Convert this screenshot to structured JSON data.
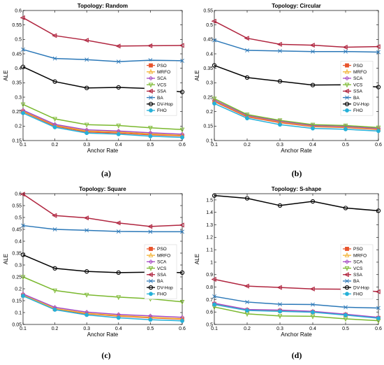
{
  "chart_data": [
    {
      "panel": "(a)",
      "type": "line",
      "title": "Topology: Random",
      "xlabel": "Anchor Rate",
      "ylabel": "ALE",
      "xlim": [
        0.1,
        0.6
      ],
      "ylim": [
        0.15,
        0.6
      ],
      "xticks": [
        "0.1",
        "0.2",
        "0.3",
        "0.4",
        "0.5",
        "0.6"
      ],
      "yticks": [
        "0.15",
        "0.2",
        "0.25",
        "0.3",
        "0.35",
        "0.4",
        "0.45",
        "0.5",
        "0.55",
        "0.6"
      ],
      "legend_position": "right-middle",
      "x": [
        0.1,
        0.2,
        0.3,
        0.4,
        0.5,
        0.6
      ],
      "series": [
        {
          "name": "PSO",
          "values": [
            0.25,
            0.2,
            0.18,
            0.176,
            0.17,
            0.166
          ]
        },
        {
          "name": "MRFO",
          "values": [
            0.252,
            0.203,
            0.183,
            0.18,
            0.173,
            0.168
          ]
        },
        {
          "name": "SCA",
          "values": [
            0.255,
            0.206,
            0.187,
            0.183,
            0.177,
            0.172
          ]
        },
        {
          "name": "VCS",
          "values": [
            0.275,
            0.225,
            0.205,
            0.202,
            0.194,
            0.188
          ]
        },
        {
          "name": "SSA",
          "values": [
            0.575,
            0.513,
            0.497,
            0.477,
            0.478,
            0.479
          ]
        },
        {
          "name": "BA",
          "values": [
            0.465,
            0.434,
            0.43,
            0.423,
            0.428,
            0.426
          ]
        },
        {
          "name": "DV-Hop",
          "values": [
            0.405,
            0.354,
            0.332,
            0.334,
            0.33,
            0.318
          ]
        },
        {
          "name": "FHO",
          "values": [
            0.245,
            0.196,
            0.176,
            0.172,
            0.165,
            0.161
          ]
        }
      ]
    },
    {
      "panel": "(b)",
      "type": "line",
      "title": "Topology: Circular",
      "xlabel": "Anchor Rate",
      "ylabel": "ALE",
      "xlim": [
        0.1,
        0.6
      ],
      "ylim": [
        0.1,
        0.55
      ],
      "xticks": [
        "0.1",
        "0.2",
        "0.3",
        "0.4",
        "0.5",
        "0.6"
      ],
      "yticks": [
        "0.1",
        "0.15",
        "0.2",
        "0.25",
        "0.3",
        "0.35",
        "0.4",
        "0.45",
        "0.5",
        "0.55"
      ],
      "legend_position": "right-middle",
      "x": [
        0.1,
        0.2,
        0.3,
        0.4,
        0.5,
        0.6
      ],
      "series": [
        {
          "name": "PSO",
          "values": [
            0.235,
            0.182,
            0.162,
            0.148,
            0.145,
            0.138
          ]
        },
        {
          "name": "MRFO",
          "values": [
            0.238,
            0.185,
            0.165,
            0.15,
            0.147,
            0.14
          ]
        },
        {
          "name": "SCA",
          "values": [
            0.24,
            0.187,
            0.167,
            0.152,
            0.149,
            0.142
          ]
        },
        {
          "name": "VCS",
          "values": [
            0.245,
            0.19,
            0.17,
            0.155,
            0.152,
            0.145
          ]
        },
        {
          "name": "SSA",
          "values": [
            0.513,
            0.454,
            0.433,
            0.43,
            0.423,
            0.425
          ]
        },
        {
          "name": "BA",
          "values": [
            0.447,
            0.412,
            0.41,
            0.408,
            0.408,
            0.406
          ]
        },
        {
          "name": "DV-Hop",
          "values": [
            0.36,
            0.318,
            0.305,
            0.292,
            0.293,
            0.285
          ]
        },
        {
          "name": "FHO",
          "values": [
            0.228,
            0.177,
            0.155,
            0.142,
            0.139,
            0.133
          ]
        }
      ]
    },
    {
      "panel": "(c)",
      "type": "line",
      "title": "Topology: Square",
      "xlabel": "Anchor Rate",
      "ylabel": "ALE",
      "xlim": [
        0.1,
        0.6
      ],
      "ylim": [
        0.05,
        0.6
      ],
      "xticks": [
        "0.1",
        "0.2",
        "0.3",
        "0.4",
        "0.5",
        "0.6"
      ],
      "yticks": [
        "0.05",
        "0.1",
        "0.15",
        "0.2",
        "0.25",
        "0.3",
        "0.35",
        "0.4",
        "0.45",
        "0.5",
        "0.55",
        "0.6"
      ],
      "legend_position": "right-middle",
      "x": [
        0.1,
        0.2,
        0.3,
        0.4,
        0.5,
        0.6
      ],
      "series": [
        {
          "name": "PSO",
          "values": [
            0.172,
            0.115,
            0.095,
            0.085,
            0.078,
            0.072
          ]
        },
        {
          "name": "MRFO",
          "values": [
            0.174,
            0.117,
            0.097,
            0.087,
            0.08,
            0.074
          ]
        },
        {
          "name": "SCA",
          "values": [
            0.178,
            0.122,
            0.102,
            0.092,
            0.086,
            0.08
          ]
        },
        {
          "name": "VCS",
          "values": [
            0.25,
            0.193,
            0.175,
            0.165,
            0.158,
            0.145
          ]
        },
        {
          "name": "SSA",
          "values": [
            0.598,
            0.508,
            0.498,
            0.477,
            0.462,
            0.468
          ]
        },
        {
          "name": "BA",
          "values": [
            0.466,
            0.45,
            0.446,
            0.441,
            0.44,
            0.44
          ]
        },
        {
          "name": "DV-Hop",
          "values": [
            0.343,
            0.286,
            0.273,
            0.268,
            0.27,
            0.268
          ]
        },
        {
          "name": "FHO",
          "values": [
            0.17,
            0.112,
            0.09,
            0.078,
            0.07,
            0.065
          ]
        }
      ]
    },
    {
      "panel": "(d)",
      "type": "line",
      "title": "Topology: S-shape",
      "xlabel": "Anchor Rate",
      "ylabel": "ALE",
      "xlim": [
        0.1,
        0.6
      ],
      "ylim": [
        0.5,
        1.55
      ],
      "xticks": [
        "0.1",
        "0.2",
        "0.3",
        "0.4",
        "0.5",
        "0.6"
      ],
      "yticks": [
        "0.5",
        "0.6",
        "0.7",
        "0.8",
        "0.9",
        "1",
        "1.1",
        "1.2",
        "1.3",
        "1.4",
        "1.5"
      ],
      "legend_position": "right-middle",
      "x": [
        0.1,
        0.2,
        0.3,
        0.4,
        0.5,
        0.6
      ],
      "series": [
        {
          "name": "PSO",
          "values": [
            0.665,
            0.615,
            0.61,
            0.6,
            0.578,
            0.552
          ]
        },
        {
          "name": "MRFO",
          "values": [
            0.668,
            0.618,
            0.612,
            0.603,
            0.58,
            0.555
          ]
        },
        {
          "name": "SCA",
          "values": [
            0.67,
            0.62,
            0.615,
            0.605,
            0.582,
            0.557
          ]
        },
        {
          "name": "VCS",
          "values": [
            0.64,
            0.585,
            0.568,
            0.565,
            0.545,
            0.53
          ]
        },
        {
          "name": "SSA",
          "values": [
            0.862,
            0.808,
            0.797,
            0.785,
            0.783,
            0.763
          ]
        },
        {
          "name": "BA",
          "values": [
            0.725,
            0.68,
            0.662,
            0.66,
            0.638,
            0.632
          ]
        },
        {
          "name": "DV-Hop",
          "values": [
            1.535,
            1.513,
            1.455,
            1.488,
            1.435,
            1.413
          ]
        },
        {
          "name": "FHO",
          "values": [
            0.66,
            0.612,
            0.605,
            0.598,
            0.575,
            0.55
          ]
        }
      ]
    }
  ],
  "series_styles": {
    "PSO": {
      "color": "#e8542c",
      "marker": "square"
    },
    "MRFO": {
      "color": "#f2b233",
      "marker": "triangle-up"
    },
    "SCA": {
      "color": "#a64bc4",
      "marker": "diamond"
    },
    "VCS": {
      "color": "#7ab82e",
      "marker": "triangle-down"
    },
    "SSA": {
      "color": "#b0253f",
      "marker": "triangle-left"
    },
    "BA": {
      "color": "#2b78b8",
      "marker": "x"
    },
    "DV-Hop": {
      "color": "#000000",
      "marker": "circle"
    },
    "FHO": {
      "color": "#25b0d8",
      "marker": "circle-filled"
    }
  }
}
